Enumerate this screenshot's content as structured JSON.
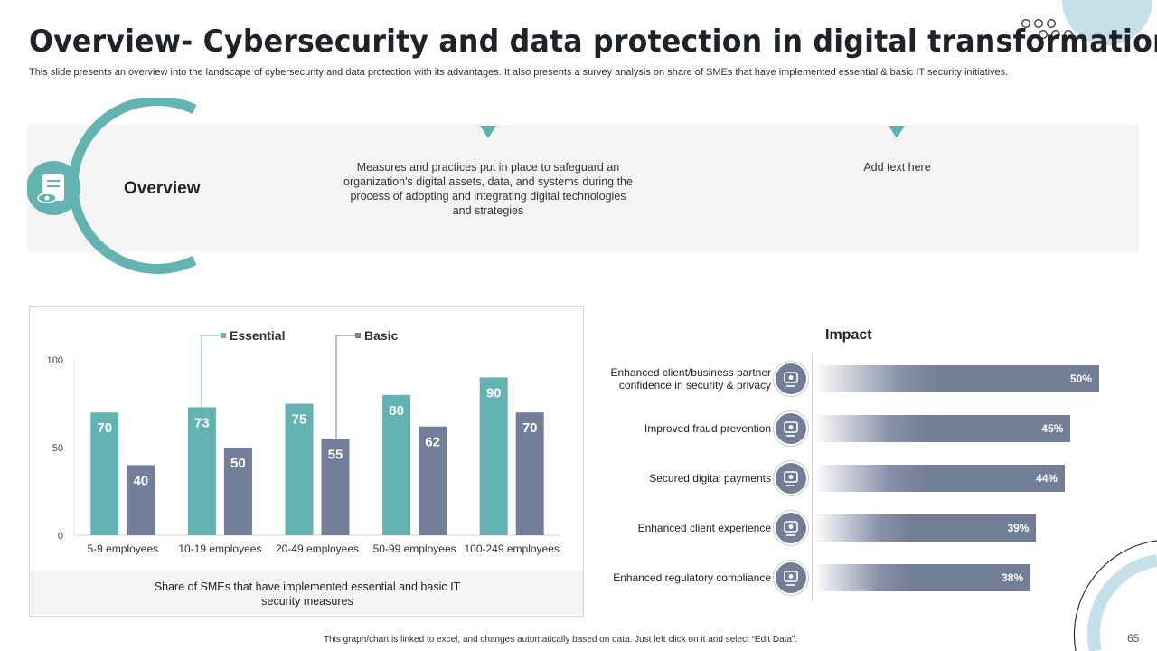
{
  "header": {
    "title": "Overview- Cybersecurity and data protection in digital transformation",
    "subtitle": "This slide presents an overview into the landscape of cybersecurity and data protection with its advantages. It also presents a survey analysis on share of SMEs that have implemented essential & basic IT security initiatives."
  },
  "overview": {
    "label": "Overview",
    "description": "Measures and practices put in place to safeguard an organization's digital assets, data, and systems during the process of adopting and integrating digital technologies and strategies",
    "placeholder": "Add text here",
    "icon": "scroll-eye-icon"
  },
  "colors": {
    "teal": "#63b3b2",
    "slate": "#737e9b",
    "band": "#f4f4f4"
  },
  "chart_data": {
    "type": "bar",
    "categories": [
      "5-9 employees",
      "10-19 employees",
      "20-49 employees",
      "50-99 employees",
      "100-249 employees"
    ],
    "series": [
      {
        "name": "Essential",
        "values": [
          70,
          73,
          75,
          80,
          90
        ],
        "color": "#63b3b2"
      },
      {
        "name": "Basic",
        "values": [
          40,
          50,
          55,
          62,
          70
        ],
        "color": "#737e9b"
      }
    ],
    "yticks": [
      0,
      50,
      100
    ],
    "ylim": [
      0,
      100
    ],
    "title": "",
    "caption": "Share of SMEs that have implemented essential and basic IT security measures",
    "legend": "callouts"
  },
  "impact": {
    "title": "Impact",
    "items": [
      {
        "label": "Enhanced client/business partner confidence in security & privacy",
        "value": 50,
        "display": "50%",
        "icon": "people-meeting-icon"
      },
      {
        "label": "Improved fraud prevention",
        "value": 45,
        "display": "45%",
        "icon": "shield-screen-icon"
      },
      {
        "label": "Secured digital payments",
        "value": 44,
        "display": "44%",
        "icon": "secure-payment-icon"
      },
      {
        "label": "Enhanced client experience",
        "value": 39,
        "display": "39%",
        "icon": "hand-heart-icon"
      },
      {
        "label": "Enhanced regulatory compliance",
        "value": 38,
        "display": "38%",
        "icon": "compliance-hand-icon"
      }
    ]
  },
  "footer": {
    "note": "This graph/chart is linked to excel, and changes automatically based on data. Just left click on it and select “Edit Data”.",
    "page": "65"
  }
}
